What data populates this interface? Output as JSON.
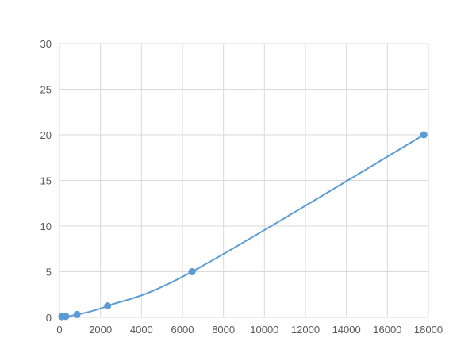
{
  "chart_data": {
    "type": "line",
    "title": "",
    "xlabel": "",
    "ylabel": "",
    "xlim": [
      0,
      18000
    ],
    "ylim": [
      0,
      30
    ],
    "xticks": [
      0,
      2000,
      4000,
      6000,
      8000,
      10000,
      12000,
      14000,
      16000,
      18000
    ],
    "yticks": [
      0,
      5,
      10,
      15,
      20,
      25,
      30
    ],
    "grid": true,
    "markers": true,
    "smooth": true,
    "color": "#5b9bd5",
    "series": [
      {
        "x": [
          113,
          311,
          855,
          2351,
          6465,
          17778
        ],
        "y": [
          0.08,
          0.1,
          0.31,
          1.25,
          5,
          20
        ]
      }
    ]
  }
}
